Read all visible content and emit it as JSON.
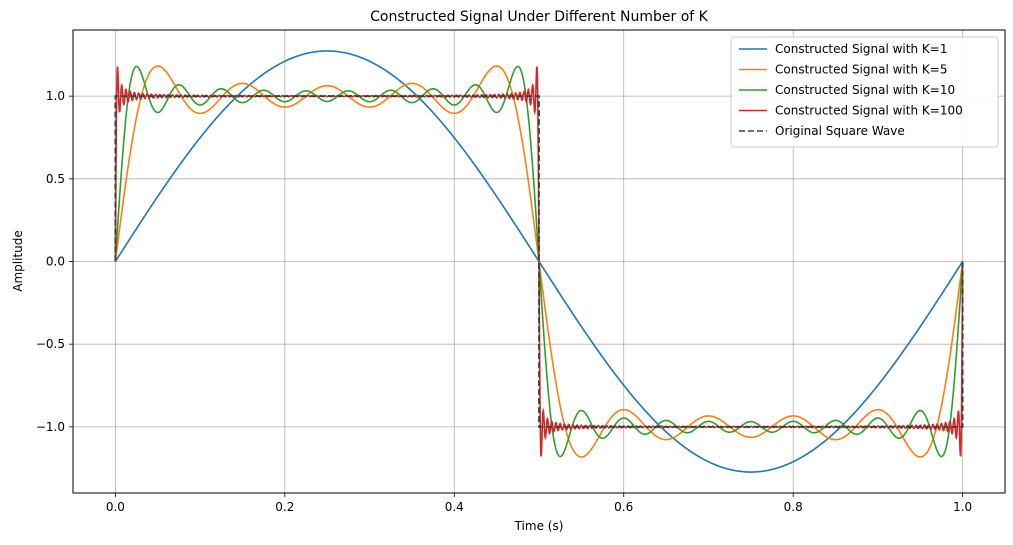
{
  "chart_data": {
    "type": "line",
    "title": "Constructed Signal Under Different Number of K",
    "xlabel": "Time (s)",
    "ylabel": "Amplitude",
    "xlim": [
      -0.05,
      1.05
    ],
    "ylim": [
      -1.4,
      1.4
    ],
    "x_ticks": [
      0.0,
      0.2,
      0.4,
      0.6,
      0.8,
      1.0
    ],
    "x_tick_labels": [
      "0.0",
      "0.2",
      "0.4",
      "0.6",
      "0.8",
      "1.0"
    ],
    "y_ticks": [
      -1.0,
      -0.5,
      0.0,
      0.5,
      1.0
    ],
    "y_tick_labels": [
      "−1.0",
      "−0.5",
      "0.0",
      "0.5",
      "1.0"
    ],
    "grid": true,
    "legend_position": "top-right",
    "x_range": [
      0.0,
      1.0
    ],
    "series": [
      {
        "name": "Constructed Signal with K=1",
        "k": 1,
        "color": "#1f77b4",
        "style": "solid"
      },
      {
        "name": "Constructed Signal with K=5",
        "k": 5,
        "color": "#ff7f0e",
        "style": "solid"
      },
      {
        "name": "Constructed Signal with K=10",
        "k": 10,
        "color": "#2ca02c",
        "style": "solid"
      },
      {
        "name": "Constructed Signal with K=100",
        "k": 100,
        "color": "#d62728",
        "style": "solid"
      },
      {
        "name": "Original Square Wave",
        "color": "#3d3d3d",
        "style": "dashed"
      }
    ]
  }
}
